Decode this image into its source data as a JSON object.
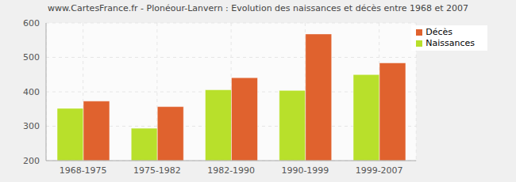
{
  "chart_data": {
    "type": "bar",
    "title": "www.CartesFrance.fr - Plonéour-Lanvern : Evolution des naissances et décès entre 1968 et 2007",
    "categories": [
      "1968-1975",
      "1975-1982",
      "1982-1990",
      "1990-1999",
      "1999-2007"
    ],
    "series": [
      {
        "name": "Naissances",
        "color": "#b8e02b",
        "values": [
          352,
          294,
          406,
          404,
          450
        ]
      },
      {
        "name": "Décès",
        "color": "#e0622e",
        "values": [
          373,
          357,
          441,
          568,
          484
        ]
      }
    ],
    "ylim": [
      200,
      600
    ],
    "yticks": [
      200,
      300,
      400,
      500,
      600
    ],
    "grid": true,
    "legend": "upper right"
  }
}
